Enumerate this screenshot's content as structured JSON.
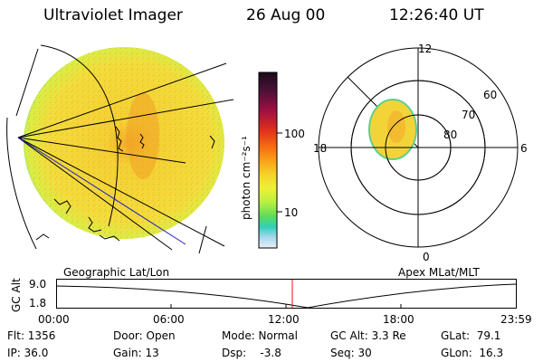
{
  "header": {
    "instrument": "Ultraviolet Imager",
    "date": "26 Aug 00",
    "time": "12:26:40 UT"
  },
  "colorbar": {
    "unit_label": "photon cm⁻²s⁻¹",
    "ticks": [
      "100",
      "10"
    ],
    "colors": [
      "#1a0a1c",
      "#4a1036",
      "#a01040",
      "#e0301c",
      "#f56a10",
      "#f9a018",
      "#f5d22a",
      "#eef03a",
      "#b8f040",
      "#5cdc5c",
      "#30d0b8",
      "#5cc0e8",
      "#a8d8f0",
      "#e8eef4"
    ]
  },
  "geo_map": {
    "label": "Geographic Lat/Lon"
  },
  "polar_map": {
    "label": "Apex MLat/MLT",
    "mlt_labels": {
      "top": "12",
      "left": "18",
      "right": "6",
      "bottom": "0"
    },
    "lat_labels": [
      "60",
      "70",
      "80"
    ]
  },
  "altitude_plot": {
    "ylabel": "GC Alt",
    "yticks": [
      "9.0",
      "1.8"
    ],
    "xticks": [
      "00:00",
      "06:00",
      "12:00",
      "18:00",
      "23:59"
    ],
    "cursor_time": "12:26:40"
  },
  "status": {
    "flt": "Flt: 1356",
    "ip": "IP: 36.0",
    "door": "Door: Open",
    "gain": "Gain: 13",
    "mode": "Mode: Normal",
    "dsp": "Dsp:    -3.8",
    "gcalt": "GC Alt: 3.3 Re",
    "seq": "Seq: 30",
    "glat": "GLat:  79.1",
    "glon": "GLon:  16.3"
  }
}
